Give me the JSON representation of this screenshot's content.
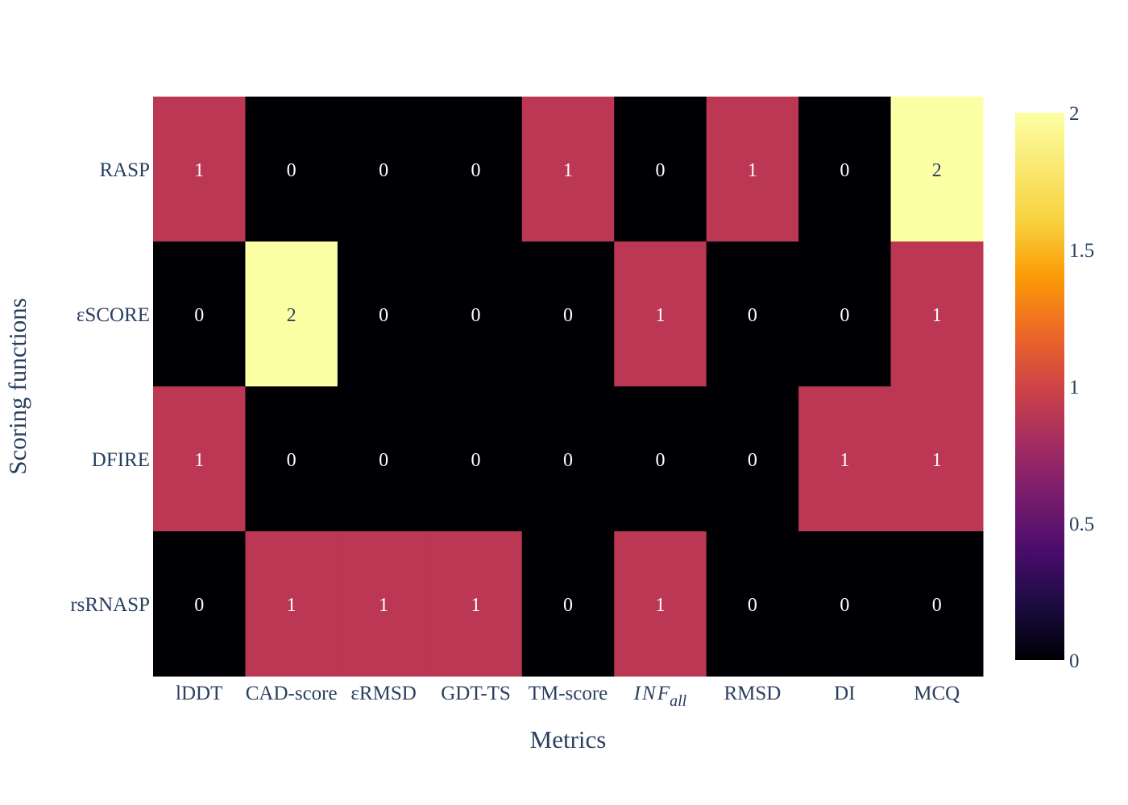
{
  "chart_data": {
    "type": "heatmap",
    "xlabel": "Metrics",
    "ylabel": "Scoring functions",
    "x_categories": [
      {
        "text": "lDDT",
        "italic": false
      },
      {
        "text": "CAD-score",
        "italic": false
      },
      {
        "text": "εRMSD",
        "italic": false
      },
      {
        "text": "GDT-TS",
        "italic": false
      },
      {
        "text": "TM-score",
        "italic": false
      },
      {
        "text": "INF",
        "sub": "all",
        "italic": true
      },
      {
        "text": "RMSD",
        "italic": false
      },
      {
        "text": "DI",
        "italic": false
      },
      {
        "text": "MCQ",
        "italic": false
      }
    ],
    "y_categories": [
      "RASP",
      "εSCORE",
      "DFIRE",
      "rsRNASP"
    ],
    "z": [
      [
        1,
        0,
        0,
        0,
        1,
        0,
        1,
        0,
        2
      ],
      [
        0,
        2,
        0,
        0,
        0,
        1,
        0,
        0,
        1
      ],
      [
        1,
        0,
        0,
        0,
        0,
        0,
        0,
        1,
        1
      ],
      [
        0,
        1,
        1,
        1,
        0,
        1,
        0,
        0,
        0
      ]
    ],
    "zmin": 0,
    "zmax": 2,
    "colorscale": "inferno",
    "colors": {
      "0": "#000004",
      "1": "#bb3754",
      "2": "#fcffa4"
    },
    "colorbar_ticks": [
      "0",
      "0.5",
      "1",
      "1.5",
      "2"
    ],
    "text_annotations": true
  }
}
